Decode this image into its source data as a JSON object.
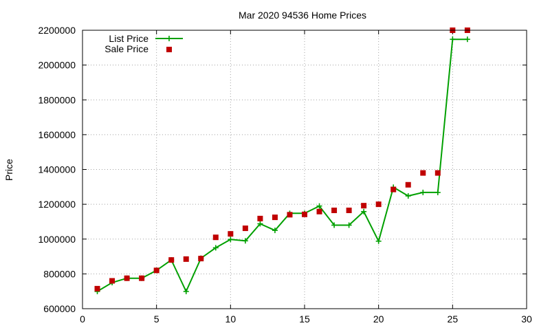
{
  "chart_data": {
    "type": "line",
    "title": "Mar 2020 94536 Home Prices",
    "xlabel": "",
    "ylabel": "Price",
    "xlim": [
      0,
      30
    ],
    "ylim": [
      600000,
      2200000
    ],
    "x_ticks": [
      0,
      5,
      10,
      15,
      20,
      25,
      30
    ],
    "y_ticks": [
      600000,
      800000,
      1000000,
      1200000,
      1400000,
      1600000,
      1800000,
      2000000,
      2200000
    ],
    "grid": true,
    "legend_position": "top-left",
    "series": [
      {
        "name": "List Price",
        "style": "line-with-plus-markers",
        "color": "#00a000",
        "x": [
          1,
          2,
          3,
          4,
          5,
          6,
          7,
          8,
          9,
          10,
          11,
          12,
          13,
          14,
          15,
          16,
          17,
          18,
          19,
          20,
          21,
          22,
          23,
          24,
          25,
          26
        ],
        "values": [
          699000,
          750000,
          775000,
          775000,
          820000,
          880000,
          699000,
          890000,
          950000,
          998000,
          990000,
          1088000,
          1050000,
          1148000,
          1148000,
          1190000,
          1080000,
          1080000,
          1158000,
          988000,
          1298000,
          1248000,
          1268000,
          1268000,
          2148000,
          2148000
        ]
      },
      {
        "name": "Sale Price",
        "style": "square-markers",
        "color": "#c00000",
        "x": [
          1,
          2,
          3,
          4,
          5,
          6,
          7,
          8,
          9,
          10,
          11,
          12,
          13,
          14,
          15,
          16,
          17,
          18,
          19,
          20,
          21,
          22,
          23,
          24,
          25,
          26
        ],
        "values": [
          715000,
          760000,
          775000,
          775000,
          820000,
          880000,
          885000,
          888000,
          1010000,
          1030000,
          1062000,
          1118000,
          1125000,
          1140000,
          1142000,
          1158000,
          1165000,
          1165000,
          1192000,
          1200000,
          1285000,
          1312000,
          1380000,
          1380000,
          2200000,
          2200000
        ]
      }
    ]
  }
}
